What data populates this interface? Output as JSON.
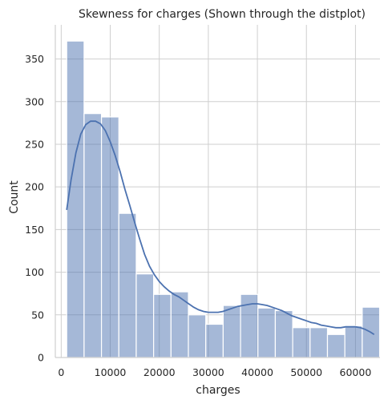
{
  "chart_data": {
    "type": "bar",
    "subtype": "histogram-with-kde",
    "title": "Skewness for charges (Shown through the distplot)",
    "xlabel": "charges",
    "ylabel": "Count",
    "xlim": [
      -1200,
      65000
    ],
    "ylim": [
      0,
      390
    ],
    "xticks": [
      0,
      10000,
      20000,
      30000,
      40000,
      50000,
      60000
    ],
    "xtick_labels": [
      "0",
      "10000",
      "20000",
      "30000",
      "40000",
      "50000",
      "60000"
    ],
    "yticks": [
      0,
      50,
      100,
      150,
      200,
      250,
      300,
      350
    ],
    "ytick_labels": [
      "0",
      "50",
      "100",
      "150",
      "200",
      "250",
      "300",
      "350"
    ],
    "grid": true,
    "color": "#4c72b0",
    "bins": [
      {
        "x0": 1122,
        "x1": 4667,
        "count": 371
      },
      {
        "x0": 4667,
        "x1": 8211,
        "count": 286
      },
      {
        "x0": 8211,
        "x1": 11756,
        "count": 282
      },
      {
        "x0": 11756,
        "x1": 15301,
        "count": 169
      },
      {
        "x0": 15301,
        "x1": 18845,
        "count": 98
      },
      {
        "x0": 18845,
        "x1": 22390,
        "count": 74
      },
      {
        "x0": 22390,
        "x1": 25935,
        "count": 77
      },
      {
        "x0": 25935,
        "x1": 29479,
        "count": 50
      },
      {
        "x0": 29479,
        "x1": 33024,
        "count": 39
      },
      {
        "x0": 33024,
        "x1": 36569,
        "count": 61
      },
      {
        "x0": 36569,
        "x1": 40113,
        "count": 74
      },
      {
        "x0": 40113,
        "x1": 43658,
        "count": 58
      },
      {
        "x0": 43658,
        "x1": 47203,
        "count": 55
      },
      {
        "x0": 47203,
        "x1": 50747,
        "count": 35
      },
      {
        "x0": 50747,
        "x1": 54292,
        "count": 35
      },
      {
        "x0": 54292,
        "x1": 57837,
        "count": 27
      },
      {
        "x0": 57837,
        "x1": 61381,
        "count": 37
      },
      {
        "x0": 61381,
        "x1": 64926,
        "count": 59
      }
    ],
    "kde": [
      [
        1120,
        173
      ],
      [
        2000,
        208
      ],
      [
        3000,
        240
      ],
      [
        4000,
        262
      ],
      [
        5000,
        273
      ],
      [
        6000,
        277
      ],
      [
        7000,
        277
      ],
      [
        8000,
        274
      ],
      [
        9000,
        266
      ],
      [
        10000,
        253
      ],
      [
        11000,
        237
      ],
      [
        12000,
        218
      ],
      [
        13000,
        197
      ],
      [
        14000,
        178
      ],
      [
        15000,
        158
      ],
      [
        16000,
        139
      ],
      [
        17000,
        121
      ],
      [
        18000,
        107
      ],
      [
        19000,
        97
      ],
      [
        20000,
        89
      ],
      [
        21000,
        83
      ],
      [
        22000,
        78
      ],
      [
        23000,
        74
      ],
      [
        24000,
        71
      ],
      [
        25000,
        67
      ],
      [
        26000,
        63
      ],
      [
        27000,
        59
      ],
      [
        28000,
        56
      ],
      [
        29000,
        54
      ],
      [
        30000,
        53
      ],
      [
        31000,
        53
      ],
      [
        32000,
        53
      ],
      [
        33000,
        54
      ],
      [
        34000,
        56
      ],
      [
        35000,
        58
      ],
      [
        36000,
        60
      ],
      [
        37000,
        61
      ],
      [
        38000,
        62
      ],
      [
        39000,
        63
      ],
      [
        40000,
        63
      ],
      [
        41000,
        62
      ],
      [
        42000,
        61
      ],
      [
        43000,
        59
      ],
      [
        44000,
        57
      ],
      [
        45000,
        55
      ],
      [
        46000,
        52
      ],
      [
        47000,
        49
      ],
      [
        48000,
        47
      ],
      [
        49000,
        45
      ],
      [
        50000,
        43
      ],
      [
        51000,
        41
      ],
      [
        52000,
        40
      ],
      [
        53000,
        38
      ],
      [
        54000,
        37
      ],
      [
        55000,
        36
      ],
      [
        56000,
        35
      ],
      [
        57000,
        35
      ],
      [
        58000,
        36
      ],
      [
        59000,
        36
      ],
      [
        60000,
        36
      ],
      [
        61000,
        35
      ],
      [
        62000,
        33
      ],
      [
        63000,
        30
      ],
      [
        63800,
        27
      ]
    ]
  }
}
